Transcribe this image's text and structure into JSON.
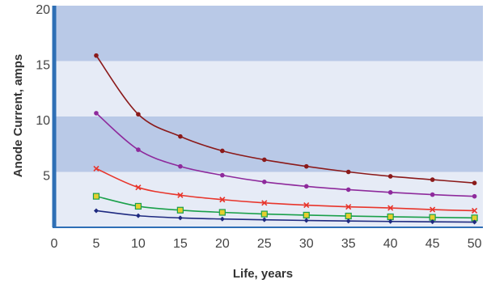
{
  "chart_data": {
    "type": "line",
    "title": "",
    "xlabel": "Life, years",
    "ylabel": "Anode Current, amps",
    "xlim": [
      0,
      51
    ],
    "ylim": [
      0,
      20
    ],
    "x_ticks": [
      "0",
      "5",
      "10",
      "15",
      "20",
      "25",
      "30",
      "35",
      "40",
      "45",
      "50"
    ],
    "y_ticks": [
      "5",
      "10",
      "15",
      "20"
    ],
    "grid": "alternating horizontal bands",
    "band_colors": [
      "#e6ebf6",
      "#b9c9e7"
    ],
    "axis_color": "#2e6fb5",
    "legend": "none",
    "x": [
      5,
      10,
      15,
      20,
      25,
      30,
      35,
      40,
      45,
      50
    ],
    "series": [
      {
        "color": "#8b1a1a",
        "marker": "circle",
        "values": [
          15.5,
          10.2,
          8.2,
          6.9,
          6.1,
          5.5,
          5.0,
          4.6,
          4.3,
          4.0
        ]
      },
      {
        "color": "#8e2a9c",
        "marker": "circle",
        "values": [
          10.3,
          7.0,
          5.5,
          4.7,
          4.1,
          3.7,
          3.4,
          3.15,
          2.95,
          2.8
        ]
      },
      {
        "color": "#e8352b",
        "marker": "x",
        "values": [
          5.3,
          3.6,
          2.9,
          2.5,
          2.2,
          2.0,
          1.85,
          1.75,
          1.6,
          1.5
        ]
      },
      {
        "color": "#1aa04a",
        "marker": "square",
        "values": [
          2.8,
          1.9,
          1.55,
          1.35,
          1.2,
          1.1,
          1.02,
          0.95,
          0.9,
          0.85
        ]
      },
      {
        "color": "#1e2a80",
        "marker": "diamond",
        "values": [
          1.5,
          1.05,
          0.85,
          0.75,
          0.68,
          0.62,
          0.57,
          0.53,
          0.5,
          0.47
        ]
      }
    ]
  }
}
